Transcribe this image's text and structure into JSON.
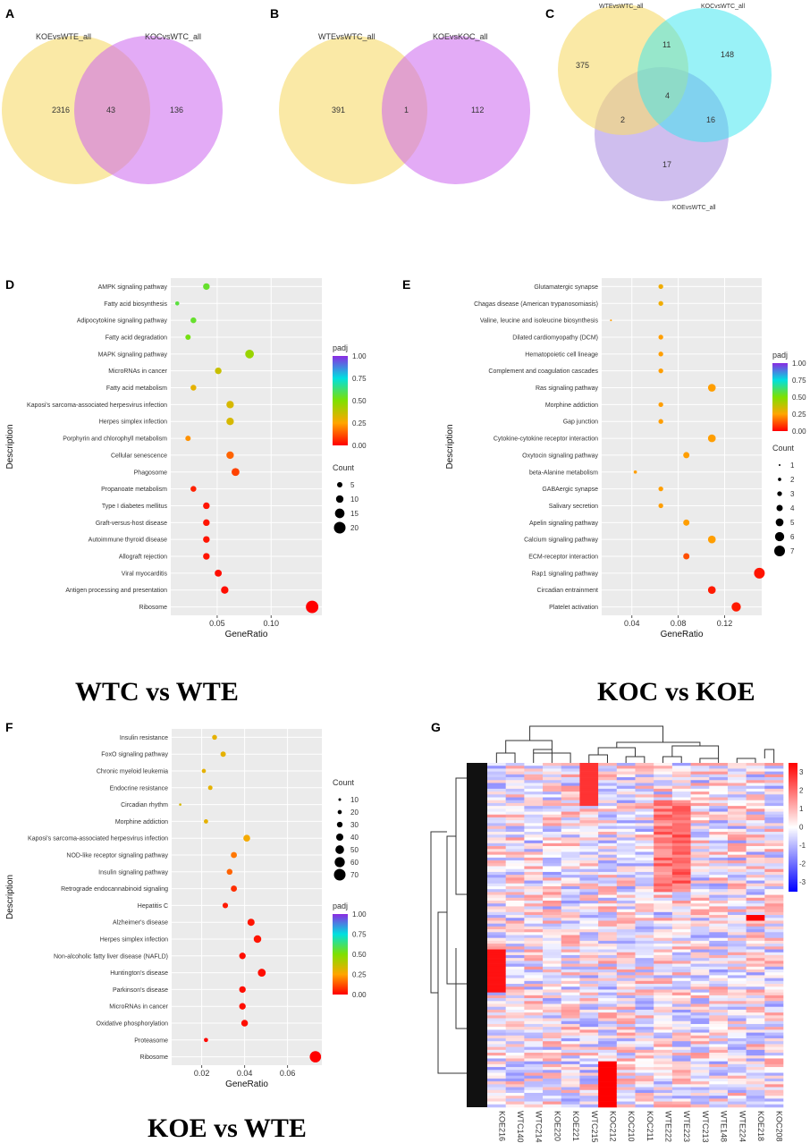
{
  "chart_data": [
    {
      "panel": "A",
      "type": "venn",
      "sets": [
        "KOEvsWTE_all",
        "KOCvsWTC_all"
      ],
      "regions": {
        "a_only": "2316",
        "ab": "43",
        "b_only": "136"
      }
    },
    {
      "panel": "B",
      "type": "venn",
      "sets": [
        "WTEvsWTC_all",
        "KOEvsKOC_all"
      ],
      "regions": {
        "a_only": "391",
        "ab": "1",
        "b_only": "112"
      }
    },
    {
      "panel": "C",
      "type": "venn3",
      "sets": [
        "WTEvsWTC_all",
        "KOCvsWTC_all",
        "KOEvsWTC_all"
      ],
      "regions": {
        "a_only": "375",
        "b_only": "148",
        "c_only": "17",
        "ab": "11",
        "ac": "2",
        "bc": "16",
        "abc": "4"
      }
    },
    {
      "panel": "D",
      "type": "scatter",
      "subtitle": "WTC vs WTE",
      "xlabel": "GeneRatio",
      "ylabel": "Description",
      "xlim": [
        0.007,
        0.147
      ],
      "xticks": [
        0.05,
        0.1
      ],
      "xtick_labels": [
        "0.05",
        "0.10"
      ],
      "colorbar": {
        "title": "padj",
        "ticks": [
          "0.00",
          "0.25",
          "0.50",
          "0.75",
          "1.00"
        ]
      },
      "size_legend": {
        "title": "Count",
        "values": [
          "5",
          "10",
          "15",
          "20"
        ]
      },
      "points": [
        {
          "term": "AMPK signaling pathway",
          "x": 0.04,
          "count": 8,
          "padj": 0.55
        },
        {
          "term": "Fatty acid biosynthesis",
          "x": 0.013,
          "count": 2,
          "padj": 0.57
        },
        {
          "term": "Adipocytokine signaling pathway",
          "x": 0.028,
          "count": 6,
          "padj": 0.55
        },
        {
          "term": "Fatty acid degradation",
          "x": 0.023,
          "count": 5,
          "padj": 0.52
        },
        {
          "term": "MAPK signaling pathway",
          "x": 0.08,
          "count": 13,
          "padj": 0.45
        },
        {
          "term": "MicroRNAs in cancer",
          "x": 0.051,
          "count": 8,
          "padj": 0.36
        },
        {
          "term": "Fatty acid metabolism",
          "x": 0.028,
          "count": 6,
          "padj": 0.3
        },
        {
          "term": "Kaposi's sarcoma-associated herpesvirus infection",
          "x": 0.062,
          "count": 10,
          "padj": 0.33
        },
        {
          "term": "Herpes simplex infection",
          "x": 0.062,
          "count": 10,
          "padj": 0.33
        },
        {
          "term": "Porphyrin and chlorophyll metabolism",
          "x": 0.023,
          "count": 5,
          "padj": 0.22
        },
        {
          "term": "Cellular senescence",
          "x": 0.062,
          "count": 10,
          "padj": 0.15
        },
        {
          "term": "Phagosome",
          "x": 0.067,
          "count": 11,
          "padj": 0.1
        },
        {
          "term": "Propanoate metabolism",
          "x": 0.028,
          "count": 6,
          "padj": 0.05
        },
        {
          "term": "Type I diabetes mellitus",
          "x": 0.04,
          "count": 8,
          "padj": 0.03
        },
        {
          "term": "Graft-versus-host disease",
          "x": 0.04,
          "count": 8,
          "padj": 0.03
        },
        {
          "term": "Autoimmune thyroid disease",
          "x": 0.04,
          "count": 8,
          "padj": 0.03
        },
        {
          "term": "Allograft rejection",
          "x": 0.04,
          "count": 8,
          "padj": 0.03
        },
        {
          "term": "Viral myocarditis",
          "x": 0.051,
          "count": 9,
          "padj": 0.02
        },
        {
          "term": "Antigen processing and presentation",
          "x": 0.057,
          "count": 10,
          "padj": 0.02
        },
        {
          "term": "Ribosome",
          "x": 0.138,
          "count": 22,
          "padj": 0.0
        }
      ]
    },
    {
      "panel": "E",
      "type": "scatter",
      "subtitle": "KOC vs KOE",
      "xlabel": "GeneRatio",
      "ylabel": "Description",
      "xlim": [
        0.014,
        0.152
      ],
      "xticks": [
        0.04,
        0.08,
        0.12
      ],
      "xtick_labels": [
        "0.04",
        "0.08",
        "0.12"
      ],
      "colorbar": {
        "title": "padj",
        "ticks": [
          "0.00",
          "0.25",
          "0.50",
          "0.75",
          "1.00"
        ]
      },
      "size_legend": {
        "title": "Count",
        "values": [
          "1",
          "2",
          "3",
          "4",
          "5",
          "6",
          "7"
        ]
      },
      "points": [
        {
          "term": "Glutamatergic synapse",
          "x": 0.065,
          "count": 3,
          "padj": 0.28
        },
        {
          "term": "Chagas disease (American trypanosomiasis)",
          "x": 0.065,
          "count": 3,
          "padj": 0.28
        },
        {
          "term": "Valine, leucine and isoleucine biosynthesis",
          "x": 0.022,
          "count": 1,
          "padj": 0.24
        },
        {
          "term": "Dilated cardiomyopathy (DCM)",
          "x": 0.065,
          "count": 3,
          "padj": 0.24
        },
        {
          "term": "Hematopoietic cell lineage",
          "x": 0.065,
          "count": 3,
          "padj": 0.24
        },
        {
          "term": "Complement and coagulation cascades",
          "x": 0.065,
          "count": 3,
          "padj": 0.24
        },
        {
          "term": "Ras signaling pathway",
          "x": 0.109,
          "count": 5,
          "padj": 0.24
        },
        {
          "term": "Morphine addiction",
          "x": 0.065,
          "count": 3,
          "padj": 0.24
        },
        {
          "term": "Gap junction",
          "x": 0.065,
          "count": 3,
          "padj": 0.24
        },
        {
          "term": "Cytokine-cytokine receptor interaction",
          "x": 0.109,
          "count": 5,
          "padj": 0.24
        },
        {
          "term": "Oxytocin signaling pathway",
          "x": 0.087,
          "count": 4,
          "padj": 0.24
        },
        {
          "term": "beta-Alanine metabolism",
          "x": 0.043,
          "count": 2,
          "padj": 0.24
        },
        {
          "term": "GABAergic synapse",
          "x": 0.065,
          "count": 3,
          "padj": 0.24
        },
        {
          "term": "Salivary secretion",
          "x": 0.065,
          "count": 3,
          "padj": 0.24
        },
        {
          "term": "Apelin signaling pathway",
          "x": 0.087,
          "count": 4,
          "padj": 0.24
        },
        {
          "term": "Calcium signaling pathway",
          "x": 0.109,
          "count": 5,
          "padj": 0.24
        },
        {
          "term": "ECM-receptor interaction",
          "x": 0.087,
          "count": 4,
          "padj": 0.12
        },
        {
          "term": "Rap1 signaling pathway",
          "x": 0.15,
          "count": 7,
          "padj": 0.03
        },
        {
          "term": "Circadian entrainment",
          "x": 0.109,
          "count": 5,
          "padj": 0.04
        },
        {
          "term": "Platelet activation",
          "x": 0.13,
          "count": 6,
          "padj": 0.04
        }
      ]
    },
    {
      "panel": "F",
      "type": "scatter",
      "subtitle": "KOE vs WTE",
      "xlabel": "GeneRatio",
      "ylabel": "Description",
      "xlim": [
        0.006,
        0.076
      ],
      "xticks": [
        0.02,
        0.04,
        0.06
      ],
      "xtick_labels": [
        "0.02",
        "0.04",
        "0.06"
      ],
      "colorbar": {
        "title": "padj",
        "ticks": [
          "0.00",
          "0.25",
          "0.50",
          "0.75",
          "1.00"
        ]
      },
      "size_legend": {
        "title": "Count",
        "values": [
          "10",
          "20",
          "30",
          "40",
          "50",
          "60",
          "70"
        ]
      },
      "points": [
        {
          "term": "Insulin resistance",
          "x": 0.026,
          "count": 25,
          "padj": 0.3
        },
        {
          "term": "FoxO signaling pathway",
          "x": 0.03,
          "count": 28,
          "padj": 0.3
        },
        {
          "term": "Chronic myeloid leukemia",
          "x": 0.021,
          "count": 20,
          "padj": 0.3
        },
        {
          "term": "Endocrine resistance",
          "x": 0.024,
          "count": 22,
          "padj": 0.3
        },
        {
          "term": "Circadian rhythm",
          "x": 0.01,
          "count": 8,
          "padj": 0.33
        },
        {
          "term": "Morphine addiction",
          "x": 0.022,
          "count": 21,
          "padj": 0.3
        },
        {
          "term": "Kaposi's sarcoma-associated herpesvirus infection",
          "x": 0.041,
          "count": 38,
          "padj": 0.27
        },
        {
          "term": "NOD-like receptor signaling pathway",
          "x": 0.035,
          "count": 33,
          "padj": 0.18
        },
        {
          "term": "Insulin signaling pathway",
          "x": 0.033,
          "count": 31,
          "padj": 0.15
        },
        {
          "term": "Retrograde endocannabinoid signaling",
          "x": 0.035,
          "count": 33,
          "padj": 0.07
        },
        {
          "term": "Hepatitis C",
          "x": 0.031,
          "count": 29,
          "padj": 0.04
        },
        {
          "term": "Alzheimer's disease",
          "x": 0.043,
          "count": 40,
          "padj": 0.03
        },
        {
          "term": "Herpes simplex infection",
          "x": 0.046,
          "count": 43,
          "padj": 0.03
        },
        {
          "term": "Non-alcoholic fatty liver disease (NAFLD)",
          "x": 0.039,
          "count": 36,
          "padj": 0.02
        },
        {
          "term": "Huntington's disease",
          "x": 0.048,
          "count": 45,
          "padj": 0.02
        },
        {
          "term": "Parkinson's disease",
          "x": 0.039,
          "count": 36,
          "padj": 0.02
        },
        {
          "term": "MicroRNAs in cancer",
          "x": 0.039,
          "count": 36,
          "padj": 0.02
        },
        {
          "term": "Oxidative phosphorylation",
          "x": 0.04,
          "count": 37,
          "padj": 0.02
        },
        {
          "term": "Proteasome",
          "x": 0.022,
          "count": 20,
          "padj": 0.01
        },
        {
          "term": "Ribosome",
          "x": 0.073,
          "count": 68,
          "padj": 0.0
        }
      ]
    },
    {
      "panel": "G",
      "type": "heatmap",
      "columns": [
        "KOE216",
        "WTC140",
        "WTC214",
        "KOE220",
        "KOE221",
        "WTC215",
        "KOC212",
        "KOC210",
        "KOC211",
        "WTE222",
        "WTE223",
        "WTC213",
        "WTE148",
        "WTE224",
        "KOE218",
        "KOC208"
      ],
      "colorbar": {
        "ticks": [
          "3",
          "2",
          "1",
          "0",
          "-1",
          "-2",
          "-3"
        ],
        "min": -3.5,
        "max": 3.5
      }
    }
  ],
  "panel_labels": {
    "A": "A",
    "B": "B",
    "C": "C",
    "D": "D",
    "E": "E",
    "F": "F",
    "G": "G"
  }
}
